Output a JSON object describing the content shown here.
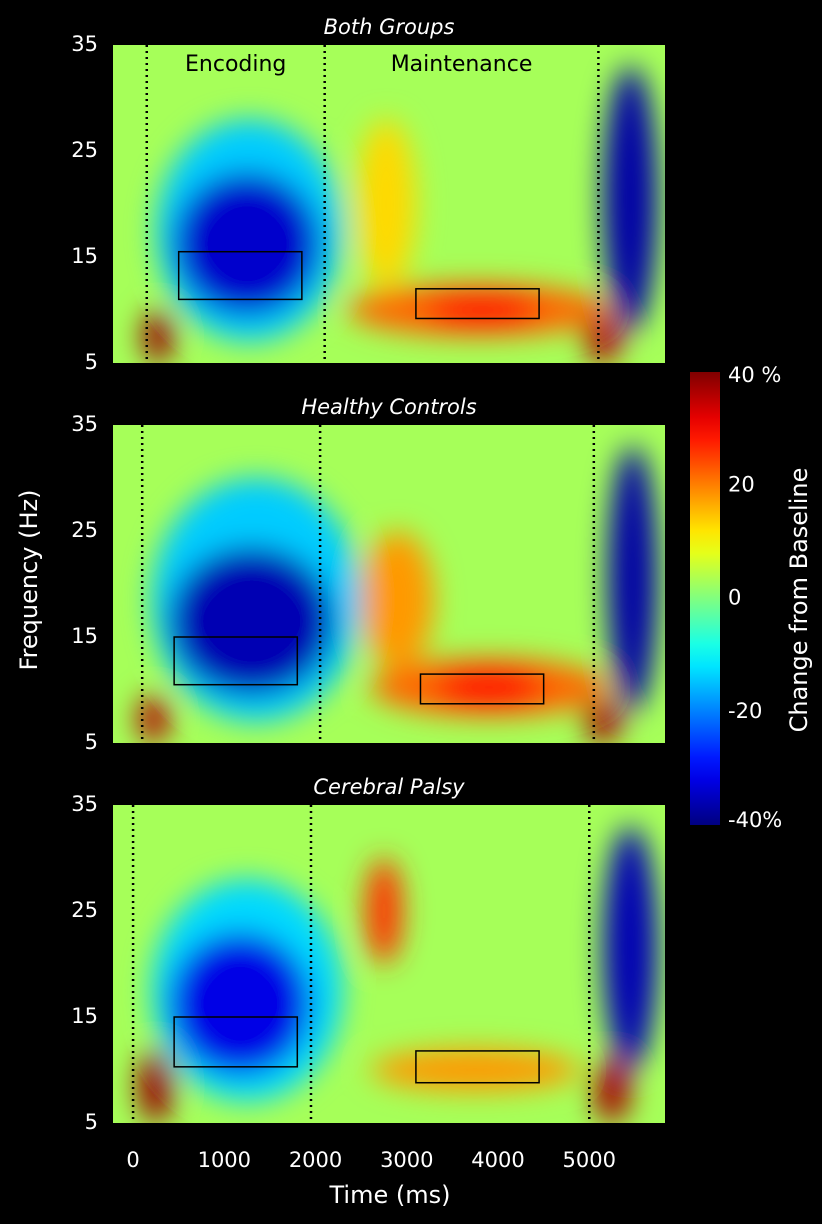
{
  "chart_data": [
    {
      "type": "heatmap",
      "title": "Both Groups",
      "xlim": [
        -220,
        5830
      ],
      "ylim": [
        5,
        35
      ],
      "yticks": [
        5,
        15,
        25,
        35
      ],
      "annotations": [
        "Encoding",
        "Maintenance"
      ],
      "event_lines": [
        150,
        2100,
        5100
      ],
      "background_value": 3,
      "boxes": [
        {
          "x": [
            500,
            1850
          ],
          "y": [
            11,
            15.5
          ]
        },
        {
          "x": [
            3100,
            4450
          ],
          "y": [
            9.2,
            12
          ]
        }
      ],
      "regions": [
        {
          "x": [
            250,
            2300
          ],
          "y": [
            7,
            28
          ],
          "value": -14
        },
        {
          "x": [
            450,
            2050
          ],
          "y": [
            9.5,
            23
          ],
          "value": -34
        },
        {
          "x": [
            2350,
            5200
          ],
          "y": [
            7.5,
            12.5
          ],
          "value": 22
        },
        {
          "x": [
            3200,
            4450
          ],
          "y": [
            8.5,
            11.5
          ],
          "value": 30
        },
        {
          "x": [
            2450,
            3100
          ],
          "y": [
            12,
            28
          ],
          "value": 13
        },
        {
          "x": [
            5150,
            5750
          ],
          "y": [
            8,
            33
          ],
          "value": -37
        },
        {
          "x": [
            100,
            450
          ],
          "y": [
            5,
            10
          ],
          "value": 38
        },
        {
          "x": [
            4950,
            5350
          ],
          "y": [
            5,
            9.5
          ],
          "value": 36
        }
      ]
    },
    {
      "type": "heatmap",
      "title": "Healthy Controls",
      "xlim": [
        -220,
        5830
      ],
      "ylim": [
        5,
        35
      ],
      "yticks": [
        5,
        15,
        25,
        35
      ],
      "event_lines": [
        100,
        2050,
        5050
      ],
      "background_value": 3,
      "boxes": [
        {
          "x": [
            450,
            1800
          ],
          "y": [
            10.5,
            15
          ]
        },
        {
          "x": [
            3150,
            4500
          ],
          "y": [
            8.7,
            11.5
          ]
        }
      ],
      "regions": [
        {
          "x": [
            200,
            2500
          ],
          "y": [
            7,
            30
          ],
          "value": -14
        },
        {
          "x": [
            400,
            2200
          ],
          "y": [
            9.5,
            23.5
          ],
          "value": -36
        },
        {
          "x": [
            2600,
            5200
          ],
          "y": [
            7.5,
            13
          ],
          "value": 22
        },
        {
          "x": [
            3300,
            4500
          ],
          "y": [
            8.5,
            12
          ],
          "value": 30
        },
        {
          "x": [
            2500,
            3300
          ],
          "y": [
            12,
            25
          ],
          "value": 18
        },
        {
          "x": [
            5200,
            5750
          ],
          "y": [
            8,
            33
          ],
          "value": -37
        },
        {
          "x": [
            50,
            400
          ],
          "y": [
            5,
            9.5
          ],
          "value": 36
        },
        {
          "x": [
            4950,
            5350
          ],
          "y": [
            5,
            9
          ],
          "value": 37
        }
      ]
    },
    {
      "type": "heatmap",
      "title": "Cerebral Palsy",
      "xlim": [
        -220,
        5830
      ],
      "ylim": [
        5,
        35
      ],
      "yticks": [
        5,
        15,
        25,
        35
      ],
      "event_lines": [
        0,
        1950,
        5000
      ],
      "background_value": 3,
      "boxes": [
        {
          "x": [
            450,
            1800
          ],
          "y": [
            10.3,
            15
          ]
        },
        {
          "x": [
            3100,
            4450
          ],
          "y": [
            8.8,
            11.8
          ]
        }
      ],
      "regions": [
        {
          "x": [
            200,
            2300
          ],
          "y": [
            7,
            28
          ],
          "value": -13
        },
        {
          "x": [
            400,
            1950
          ],
          "y": [
            9.5,
            23
          ],
          "value": -32
        },
        {
          "x": [
            2600,
            4900
          ],
          "y": [
            8,
            12
          ],
          "value": 18
        },
        {
          "x": [
            2550,
            2950
          ],
          "y": [
            20,
            30
          ],
          "value": 26
        },
        {
          "x": [
            5150,
            5750
          ],
          "y": [
            10,
            33
          ],
          "value": -36
        },
        {
          "x": [
            50,
            450
          ],
          "y": [
            5,
            12
          ],
          "value": 38
        },
        {
          "x": [
            5050,
            5450
          ],
          "y": [
            5,
            11
          ],
          "value": 37
        }
      ],
      "xticks": [
        0,
        1000,
        2000,
        3000,
        4000,
        5000
      ]
    }
  ],
  "figure": {
    "x_label": "Time (ms)",
    "y_label": "Frequency (Hz)",
    "colorbar": {
      "label": "Change from Baseline",
      "lim": [
        -40,
        40
      ],
      "ticks": [
        {
          "value": 40,
          "label": "40 %"
        },
        20,
        0,
        -20,
        {
          "value": -40,
          "label": "-40%"
        }
      ]
    }
  }
}
